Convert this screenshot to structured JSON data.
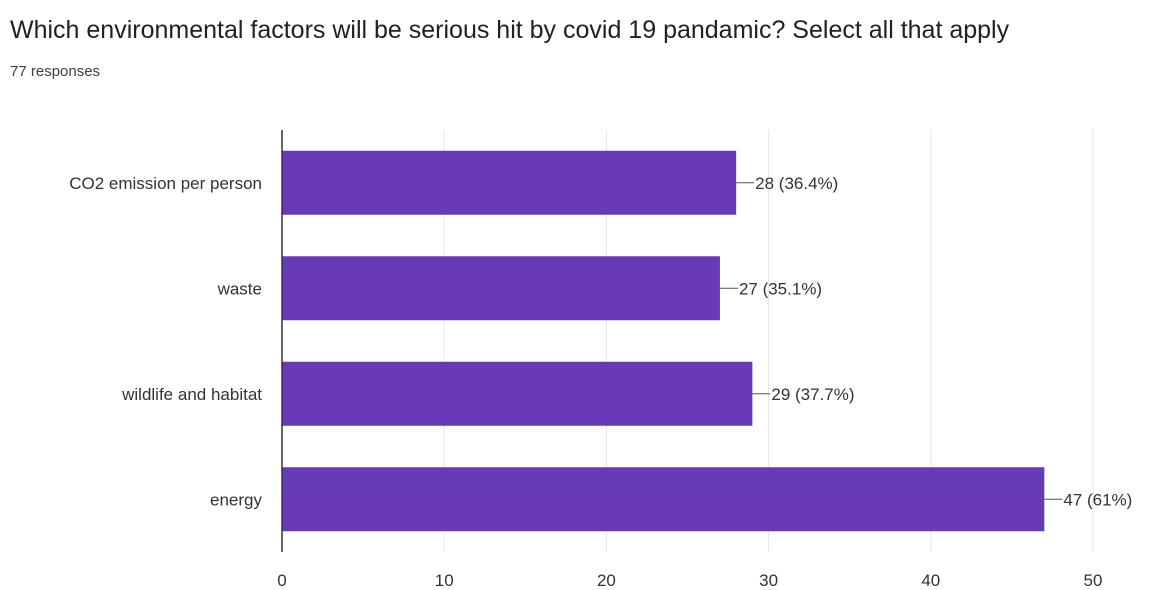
{
  "question": {
    "title": "Which environmental factors will be serious hit by covid 19 pandamic? Select all that apply",
    "responses": "77 responses"
  },
  "chart_data": {
    "type": "bar",
    "orientation": "horizontal",
    "categories": [
      "CO2 emission per person",
      "waste",
      "wildlife and habitat",
      "energy"
    ],
    "values": [
      28,
      27,
      29,
      47
    ],
    "data_labels": [
      "28 (36.4%)",
      "27 (35.1%)",
      "29 (37.7%)",
      "47 (61%)"
    ],
    "xlim": [
      0,
      50
    ],
    "x_ticks": [
      0,
      10,
      20,
      30,
      40,
      50
    ],
    "grid": true,
    "bar_color": "#673ab7",
    "grid_color": "#e6e6e6",
    "axis_color": "#333333"
  }
}
